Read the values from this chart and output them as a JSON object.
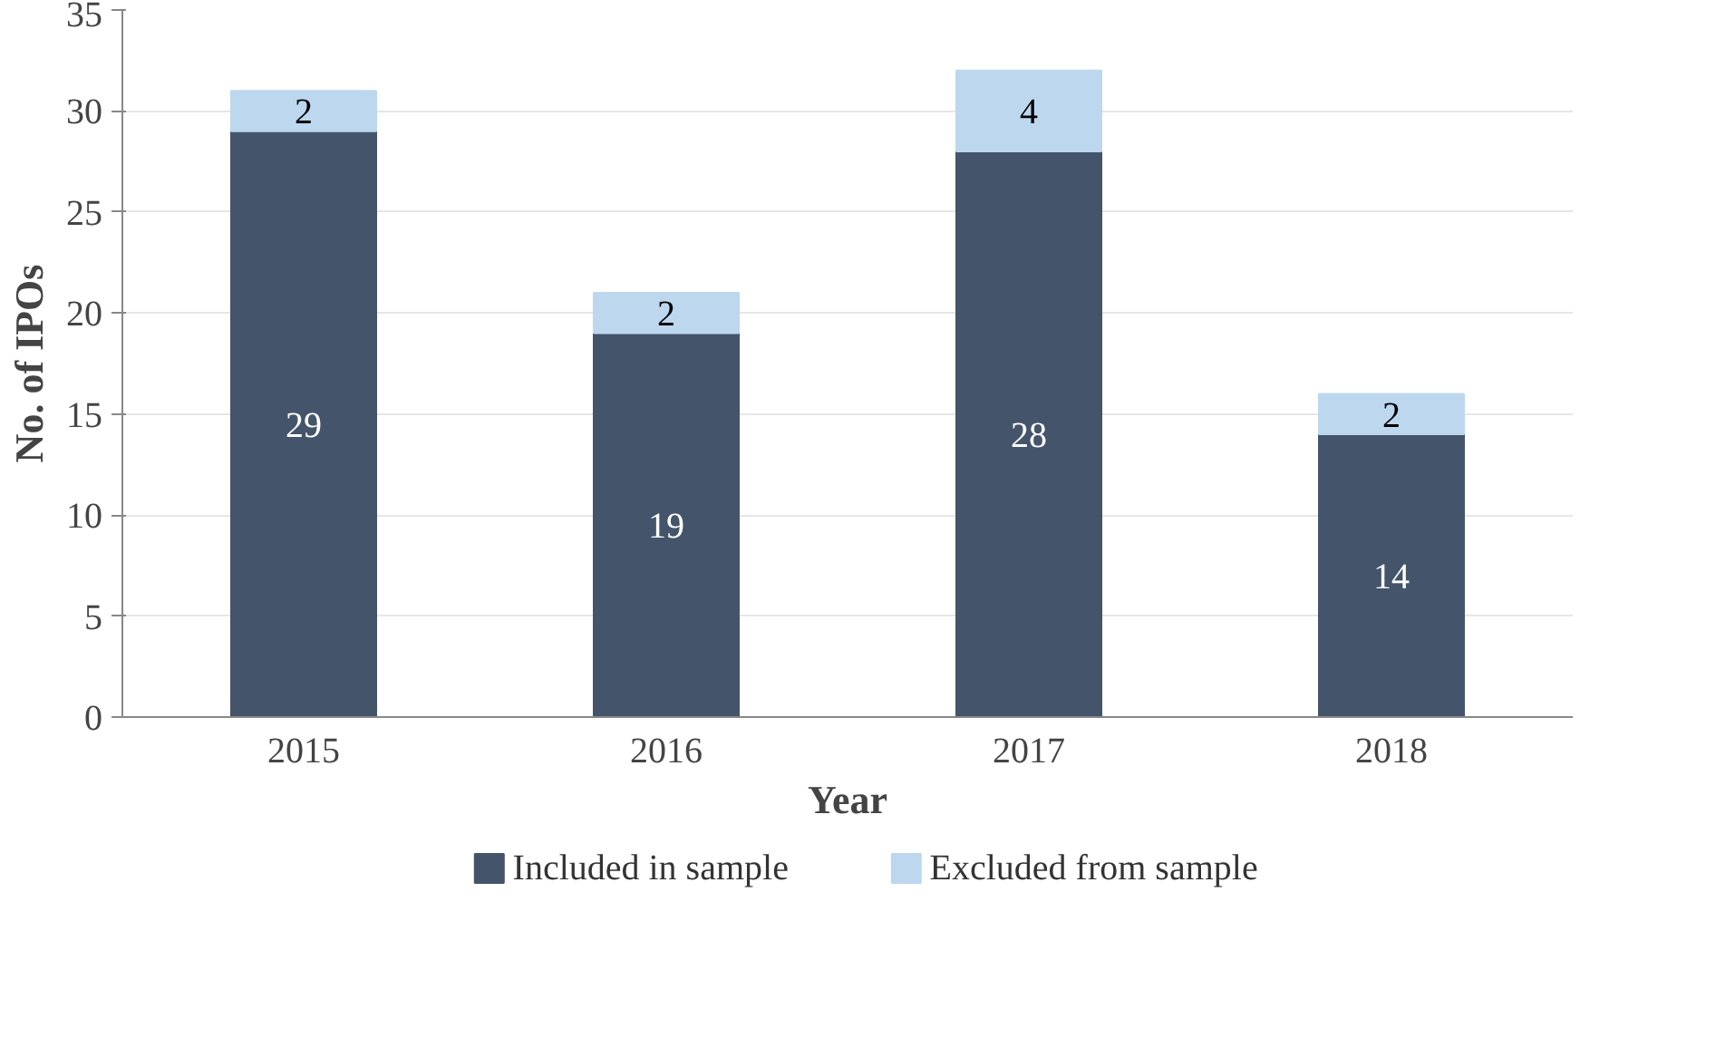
{
  "chart_data": {
    "type": "bar",
    "stacked": true,
    "xlabel": "Year",
    "ylabel": "No. of IPOs",
    "categories": [
      "2015",
      "2016",
      "2017",
      "2018"
    ],
    "series": [
      {
        "name": "Included in sample",
        "color": "#44546a",
        "values": [
          29,
          19,
          28,
          14
        ]
      },
      {
        "name": "Excluded from sample",
        "color": "#bdd7ee",
        "values": [
          2,
          2,
          4,
          2
        ]
      }
    ],
    "ylim": [
      0,
      35
    ],
    "yticks": [
      0,
      5,
      10,
      15,
      20,
      25,
      30,
      35
    ],
    "grid": "y",
    "legend": "bottom",
    "data_labels": true
  }
}
